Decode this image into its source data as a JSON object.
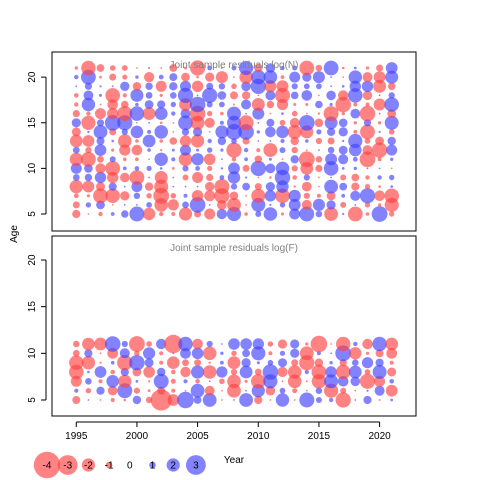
{
  "chart_data": {
    "type": "scatter",
    "subtype": "bubble-residuals",
    "xlabel": "Year",
    "ylabel": "Age",
    "x_ticks": [
      1995,
      2000,
      2005,
      2010,
      2015,
      2020
    ],
    "y_ticks": [
      5,
      10,
      15,
      20
    ],
    "xlim": [
      1993,
      2023
    ],
    "ylim": [
      3.5,
      23
    ],
    "colors": {
      "positive": "#4040ff",
      "negative": "#ff4040",
      "opacity": 0.65
    },
    "panels": [
      {
        "title": "Joint sample residuals log(N)",
        "years": [
          1995,
          2021
        ],
        "ages": [
          5,
          21
        ],
        "seed": 11
      },
      {
        "title": "Joint sample residuals log(F)",
        "years": [
          1995,
          2021
        ],
        "ages": [
          5,
          11
        ],
        "seed": 37,
        "highlights": [
          {
            "year": 2002,
            "age": 5,
            "value": -3.2
          },
          {
            "year": 2003,
            "age": 11,
            "value": -2.8
          },
          {
            "year": 2004,
            "age": 5,
            "value": 2.5
          },
          {
            "year": 2015,
            "age": 11,
            "value": -2.5
          }
        ]
      }
    ],
    "legend": {
      "values": [
        -4,
        -3,
        -2,
        -1,
        0,
        1,
        2,
        3
      ],
      "labels": [
        "-4",
        "-3",
        "-2",
        "-1",
        "0",
        "1",
        "2",
        "3"
      ]
    }
  }
}
